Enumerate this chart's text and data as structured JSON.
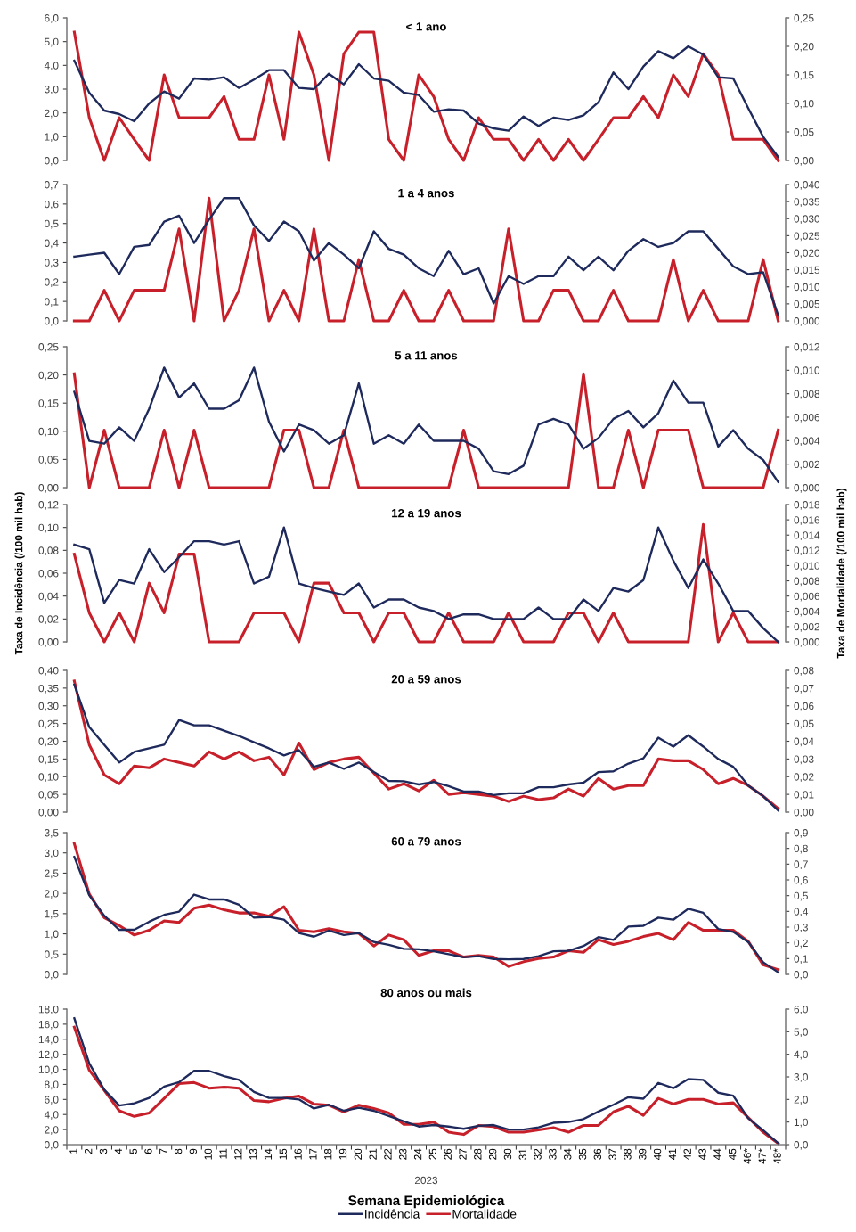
{
  "chart_data": [
    {
      "type": "line",
      "title": "< 1 ano",
      "categories": [
        null,
        null,
        null,
        null,
        null,
        null,
        null,
        null,
        null,
        null,
        null,
        null,
        null,
        null,
        null,
        null,
        null,
        null,
        null,
        null,
        null,
        null,
        null,
        null,
        null,
        null,
        null,
        null,
        null,
        null,
        null,
        null,
        null,
        null,
        null,
        null,
        null,
        null,
        null,
        null,
        null,
        null,
        null,
        null,
        null,
        null,
        null,
        null
      ],
      "ylim": [
        0,
        6
      ],
      "yticks": [
        {
          "value": 0,
          "label": "0,0"
        },
        {
          "value": 1,
          "label": "1,0"
        },
        {
          "value": 2,
          "label": "2,0"
        },
        {
          "value": 3,
          "label": "3,0"
        },
        {
          "value": 4,
          "label": "4,0"
        },
        {
          "value": 5,
          "label": "5,0"
        },
        {
          "value": 6,
          "label": "6,0"
        }
      ],
      "y2lim": [
        0,
        0.25
      ],
      "y2ticks": [
        {
          "value": 0,
          "label": "0,00"
        },
        {
          "value": 0.05,
          "label": "0,05"
        },
        {
          "value": 0.1,
          "label": "0,10"
        },
        {
          "value": 0.15,
          "label": "0,15"
        },
        {
          "value": 0.2,
          "label": "0,20"
        },
        {
          "value": 0.25,
          "label": "0,25"
        }
      ],
      "series": [
        {
          "color": "#1f2a5c",
          "values": [
            4.2,
            2.85,
            2.1,
            1.95,
            1.65,
            2.4,
            2.9,
            2.6,
            3.45,
            3.4,
            3.5,
            3.05,
            3.4,
            3.8,
            3.8,
            3.05,
            3.0,
            3.65,
            3.2,
            4.05,
            3.45,
            3.35,
            2.85,
            2.75,
            2.05,
            2.15,
            2.1,
            1.55,
            1.35,
            1.25,
            1.85,
            1.45,
            1.8,
            1.7,
            1.9,
            2.45,
            3.7,
            3.0,
            3.95,
            4.6,
            4.3,
            4.8,
            4.45,
            3.5,
            3.45,
            2.2,
            1.0,
            0.15
          ]
        },
        {
          "color": "#c8202a",
          "axis": "y2",
          "values": [
            0.225,
            0.075,
            0,
            0.075,
            0.037,
            0,
            0.15,
            0.075,
            0.075,
            0.075,
            0.112,
            0.037,
            0.037,
            0.15,
            0.037,
            0.225,
            0.15,
            0,
            0.187,
            0.225,
            0.225,
            0.037,
            0,
            0.15,
            0.112,
            0.037,
            0,
            0.075,
            0.037,
            0.037,
            0,
            0.037,
            0,
            0.037,
            0,
            0.037,
            0.075,
            0.075,
            0.112,
            0.075,
            0.15,
            0.112,
            0.187,
            0.15,
            0.037,
            0.037,
            0.037,
            0
          ]
        }
      ]
    },
    {
      "type": "line",
      "title": "1 a 4 anos",
      "categories": [
        null,
        null,
        null,
        null,
        null,
        null,
        null,
        null,
        null,
        null,
        null,
        null,
        null,
        null,
        null,
        null,
        null,
        null,
        null,
        null,
        null,
        null,
        null,
        null,
        null,
        null,
        null,
        null,
        null,
        null,
        null,
        null,
        null,
        null,
        null,
        null,
        null,
        null,
        null,
        null,
        null,
        null,
        null,
        null,
        null,
        null,
        null,
        null
      ],
      "ylim": [
        0,
        0.7
      ],
      "yticks": [
        {
          "value": 0,
          "label": "0,0"
        },
        {
          "value": 0.1,
          "label": "0,1"
        },
        {
          "value": 0.2,
          "label": "0,2"
        },
        {
          "value": 0.3,
          "label": "0,3"
        },
        {
          "value": 0.4,
          "label": "0,4"
        },
        {
          "value": 0.5,
          "label": "0,5"
        },
        {
          "value": 0.6,
          "label": "0,6"
        },
        {
          "value": 0.7,
          "label": "0,7"
        }
      ],
      "y2lim": [
        0,
        0.04
      ],
      "y2ticks": [
        {
          "value": 0,
          "label": "0,000"
        },
        {
          "value": 0.005,
          "label": "0,005"
        },
        {
          "value": 0.01,
          "label": "0,010"
        },
        {
          "value": 0.015,
          "label": "0,015"
        },
        {
          "value": 0.02,
          "label": "0,020"
        },
        {
          "value": 0.025,
          "label": "0,025"
        },
        {
          "value": 0.03,
          "label": "0,030"
        },
        {
          "value": 0.035,
          "label": "0,035"
        },
        {
          "value": 0.04,
          "label": "0,040"
        }
      ],
      "series": [
        {
          "color": "#1f2a5c",
          "values": [
            0.33,
            0.34,
            0.35,
            0.24,
            0.38,
            0.39,
            0.51,
            0.54,
            0.4,
            0.52,
            0.63,
            0.63,
            0.49,
            0.41,
            0.51,
            0.46,
            0.31,
            0.4,
            0.34,
            0.27,
            0.46,
            0.37,
            0.34,
            0.27,
            0.23,
            0.36,
            0.24,
            0.27,
            0.09,
            0.23,
            0.19,
            0.23,
            0.23,
            0.33,
            0.26,
            0.33,
            0.26,
            0.36,
            0.42,
            0.38,
            0.4,
            0.46,
            0.46,
            0.37,
            0.28,
            0.24,
            0.25,
            0.03
          ]
        },
        {
          "color": "#c8202a",
          "axis": "y2",
          "values": [
            0,
            0,
            0.009,
            0,
            0.009,
            0.009,
            0.009,
            0.027,
            0,
            0.036,
            0,
            0.009,
            0.027,
            0,
            0.009,
            0,
            0.027,
            0,
            0,
            0.018,
            0,
            0,
            0.009,
            0,
            0,
            0.009,
            0,
            0,
            0,
            0.027,
            0,
            0,
            0.009,
            0.009,
            0,
            0,
            0.009,
            0,
            0,
            0,
            0.018,
            0,
            0.009,
            0,
            0,
            0,
            0.018,
            0
          ]
        }
      ]
    },
    {
      "type": "line",
      "title": "5 a 11 anos",
      "categories": [
        null,
        null,
        null,
        null,
        null,
        null,
        null,
        null,
        null,
        null,
        null,
        null,
        null,
        null,
        null,
        null,
        null,
        null,
        null,
        null,
        null,
        null,
        null,
        null,
        null,
        null,
        null,
        null,
        null,
        null,
        null,
        null,
        null,
        null,
        null,
        null,
        null,
        null,
        null,
        null,
        null,
        null,
        null,
        null,
        null,
        null,
        null,
        null
      ],
      "ylim": [
        0,
        0.25
      ],
      "yticks": [
        {
          "value": 0,
          "label": "0,00"
        },
        {
          "value": 0.05,
          "label": "0,05"
        },
        {
          "value": 0.1,
          "label": "0,10"
        },
        {
          "value": 0.15,
          "label": "0,15"
        },
        {
          "value": 0.2,
          "label": "0,20"
        },
        {
          "value": 0.25,
          "label": "0,25"
        }
      ],
      "y2lim": [
        0,
        0.012
      ],
      "y2ticks": [
        {
          "value": 0,
          "label": "0,000"
        },
        {
          "value": 0.002,
          "label": "0,002"
        },
        {
          "value": 0.004,
          "label": "0,004"
        },
        {
          "value": 0.006,
          "label": "0,006"
        },
        {
          "value": 0.008,
          "label": "0,008"
        },
        {
          "value": 0.01,
          "label": "0,010"
        },
        {
          "value": 0.012,
          "label": "0,012"
        }
      ],
      "series": [
        {
          "color": "#1f2a5c",
          "values": [
            0.17,
            0.083,
            0.078,
            0.107,
            0.083,
            0.14,
            0.213,
            0.16,
            0.185,
            0.14,
            0.14,
            0.155,
            0.213,
            0.117,
            0.064,
            0.112,
            0.102,
            0.078,
            0.093,
            0.185,
            0.078,
            0.093,
            0.078,
            0.112,
            0.083,
            0.083,
            0.083,
            0.069,
            0.029,
            0.024,
            0.039,
            0.112,
            0.122,
            0.112,
            0.069,
            0.088,
            0.122,
            0.136,
            0.107,
            0.132,
            0.19,
            0.151,
            0.151,
            0.073,
            0.102,
            0.069,
            0.049,
            0.01
          ]
        },
        {
          "color": "#c8202a",
          "axis": "y2",
          "values": [
            0.0097,
            0,
            0.0049,
            0,
            0,
            0,
            0.0049,
            0,
            0.0049,
            0,
            0,
            0,
            0,
            0,
            0.0049,
            0.0049,
            0,
            0,
            0.0049,
            0,
            0,
            0,
            0,
            0,
            0,
            0,
            0.0049,
            0,
            0,
            0,
            0,
            0,
            0,
            0,
            0.0097,
            0,
            0,
            0.0049,
            0,
            0.0049,
            0.0049,
            0.0049,
            0,
            0,
            0,
            0,
            0,
            0.0049
          ]
        }
      ]
    },
    {
      "type": "line",
      "title": "12 a 19 anos",
      "ylabel": "Taxa de Incidência (/100 mil hab)",
      "y2label": "Taxa de Mortalidade (/100 mil hab)",
      "categories": [
        null,
        null,
        null,
        null,
        null,
        null,
        null,
        null,
        null,
        null,
        null,
        null,
        null,
        null,
        null,
        null,
        null,
        null,
        null,
        null,
        null,
        null,
        null,
        null,
        null,
        null,
        null,
        null,
        null,
        null,
        null,
        null,
        null,
        null,
        null,
        null,
        null,
        null,
        null,
        null,
        null,
        null,
        null,
        null,
        null,
        null,
        null,
        null
      ],
      "ylim": [
        0,
        0.12
      ],
      "yticks": [
        {
          "value": 0,
          "label": "0,00"
        },
        {
          "value": 0.02,
          "label": "0,02"
        },
        {
          "value": 0.04,
          "label": "0,04"
        },
        {
          "value": 0.06,
          "label": "0,06"
        },
        {
          "value": 0.08,
          "label": "0,08"
        },
        {
          "value": 0.1,
          "label": "0,10"
        },
        {
          "value": 0.12,
          "label": "0,12"
        }
      ],
      "y2lim": [
        0,
        0.018
      ],
      "y2ticks": [
        {
          "value": 0,
          "label": "0,000"
        },
        {
          "value": 0.002,
          "label": "0,002"
        },
        {
          "value": 0.004,
          "label": "0,004"
        },
        {
          "value": 0.006,
          "label": "0,006"
        },
        {
          "value": 0.008,
          "label": "0,008"
        },
        {
          "value": 0.01,
          "label": "0,010"
        },
        {
          "value": 0.012,
          "label": "0,012"
        },
        {
          "value": 0.014,
          "label": "0,014"
        },
        {
          "value": 0.016,
          "label": "0,016"
        },
        {
          "value": 0.018,
          "label": "0,018"
        }
      ],
      "series": [
        {
          "color": "#1f2a5c",
          "values": [
            0.085,
            0.081,
            0.034,
            0.054,
            0.051,
            0.081,
            0.061,
            0.074,
            0.088,
            0.088,
            0.085,
            0.088,
            0.051,
            0.057,
            0.1,
            0.051,
            0.047,
            0.044,
            0.041,
            0.051,
            0.03,
            0.037,
            0.037,
            0.03,
            0.027,
            0.02,
            0.024,
            0.024,
            0.02,
            0.02,
            0.02,
            0.03,
            0.02,
            0.02,
            0.037,
            0.027,
            0.047,
            0.044,
            0.054,
            0.1,
            0.071,
            0.047,
            0.072,
            0.051,
            0.027,
            0.027,
            0.012,
            0
          ]
        },
        {
          "color": "#c8202a",
          "axis": "y2",
          "values": [
            0.0115,
            0.0038,
            0,
            0.0038,
            0,
            0.0077,
            0.0038,
            0.0115,
            0.0115,
            0,
            0,
            0,
            0.0038,
            0.0038,
            0.0038,
            0,
            0.0077,
            0.0077,
            0.0038,
            0.0038,
            0,
            0.0038,
            0.0038,
            0,
            0,
            0.0038,
            0,
            0,
            0,
            0.0038,
            0,
            0,
            0,
            0.0038,
            0.0038,
            0,
            0.0038,
            0,
            0,
            0,
            0,
            0,
            0.0154,
            0,
            0.0038,
            0,
            0,
            0
          ]
        }
      ]
    },
    {
      "type": "line",
      "title": "20 a 59 anos",
      "categories": [
        null,
        null,
        null,
        null,
        null,
        null,
        null,
        null,
        null,
        null,
        null,
        null,
        null,
        null,
        null,
        null,
        null,
        null,
        null,
        null,
        null,
        null,
        null,
        null,
        null,
        null,
        null,
        null,
        null,
        null,
        null,
        null,
        null,
        null,
        null,
        null,
        null,
        null,
        null,
        null,
        null,
        null,
        null,
        null,
        null,
        null,
        null,
        null
      ],
      "ylim": [
        0,
        0.4
      ],
      "yticks": [
        {
          "value": 0,
          "label": "0,00"
        },
        {
          "value": 0.05,
          "label": "0,05"
        },
        {
          "value": 0.1,
          "label": "0,10"
        },
        {
          "value": 0.15,
          "label": "0,15"
        },
        {
          "value": 0.2,
          "label": "0,20"
        },
        {
          "value": 0.25,
          "label": "0,25"
        },
        {
          "value": 0.3,
          "label": "0,30"
        },
        {
          "value": 0.35,
          "label": "0,35"
        },
        {
          "value": 0.4,
          "label": "0,40"
        }
      ],
      "y2lim": [
        0,
        0.08
      ],
      "y2ticks": [
        {
          "value": 0,
          "label": "0,00"
        },
        {
          "value": 0.01,
          "label": "0,01"
        },
        {
          "value": 0.02,
          "label": "0,02"
        },
        {
          "value": 0.03,
          "label": "0,03"
        },
        {
          "value": 0.04,
          "label": "0,04"
        },
        {
          "value": 0.05,
          "label": "0,05"
        },
        {
          "value": 0.06,
          "label": "0,06"
        },
        {
          "value": 0.07,
          "label": "0,07"
        },
        {
          "value": 0.08,
          "label": "0,08"
        }
      ],
      "series": [
        {
          "color": "#1f2a5c",
          "values": [
            0.36,
            0.24,
            0.19,
            0.14,
            0.17,
            0.18,
            0.19,
            0.26,
            0.245,
            0.245,
            0.23,
            0.215,
            0.197,
            0.18,
            0.16,
            0.175,
            0.128,
            0.14,
            0.122,
            0.14,
            0.113,
            0.088,
            0.087,
            0.078,
            0.085,
            0.073,
            0.058,
            0.058,
            0.048,
            0.053,
            0.053,
            0.07,
            0.07,
            0.078,
            0.083,
            0.113,
            0.115,
            0.137,
            0.152,
            0.21,
            0.185,
            0.217,
            0.185,
            0.15,
            0.128,
            0.075,
            0.045,
            0.005
          ]
        },
        {
          "color": "#c8202a",
          "axis": "y2",
          "values": [
            0.074,
            0.038,
            0.021,
            0.016,
            0.026,
            0.025,
            0.03,
            0.028,
            0.026,
            0.034,
            0.03,
            0.034,
            0.029,
            0.031,
            0.021,
            0.039,
            0.024,
            0.028,
            0.03,
            0.031,
            0.022,
            0.013,
            0.016,
            0.012,
            0.018,
            0.01,
            0.011,
            0.01,
            0.009,
            0.006,
            0.009,
            0.007,
            0.008,
            0.013,
            0.009,
            0.019,
            0.013,
            0.015,
            0.015,
            0.03,
            0.029,
            0.029,
            0.024,
            0.016,
            0.019,
            0.015,
            0.009,
            0.002
          ]
        }
      ]
    },
    {
      "type": "line",
      "title": "60 a 79 anos",
      "categories": [
        null,
        null,
        null,
        null,
        null,
        null,
        null,
        null,
        null,
        null,
        null,
        null,
        null,
        null,
        null,
        null,
        null,
        null,
        null,
        null,
        null,
        null,
        null,
        null,
        null,
        null,
        null,
        null,
        null,
        null,
        null,
        null,
        null,
        null,
        null,
        null,
        null,
        null,
        null,
        null,
        null,
        null,
        null,
        null,
        null,
        null,
        null,
        null
      ],
      "ylim": [
        0,
        3.5
      ],
      "yticks": [
        {
          "value": 0,
          "label": "0,0"
        },
        {
          "value": 0.5,
          "label": "0,5"
        },
        {
          "value": 1,
          "label": "1,0"
        },
        {
          "value": 1.5,
          "label": "1,5"
        },
        {
          "value": 2,
          "label": "2,0"
        },
        {
          "value": 2.5,
          "label": "2,5"
        },
        {
          "value": 3,
          "label": "3,0"
        },
        {
          "value": 3.5,
          "label": "3,5"
        }
      ],
      "y2lim": [
        0,
        0.9
      ],
      "y2ticks": [
        {
          "value": 0,
          "label": "0,0"
        },
        {
          "value": 0.1,
          "label": "0,1"
        },
        {
          "value": 0.2,
          "label": "0,2"
        },
        {
          "value": 0.3,
          "label": "0,3"
        },
        {
          "value": 0.4,
          "label": "0,4"
        },
        {
          "value": 0.5,
          "label": "0,5"
        },
        {
          "value": 0.6,
          "label": "0,6"
        },
        {
          "value": 0.7,
          "label": "0,7"
        },
        {
          "value": 0.8,
          "label": "0,8"
        },
        {
          "value": 0.9,
          "label": "0,9"
        }
      ],
      "series": [
        {
          "color": "#1f2a5c",
          "values": [
            2.9,
            1.95,
            1.45,
            1.1,
            1.1,
            1.3,
            1.47,
            1.55,
            1.97,
            1.85,
            1.85,
            1.72,
            1.4,
            1.42,
            1.35,
            1.02,
            0.93,
            1.08,
            0.97,
            1.02,
            0.8,
            0.73,
            0.63,
            0.62,
            0.57,
            0.5,
            0.42,
            0.45,
            0.38,
            0.37,
            0.38,
            0.45,
            0.57,
            0.58,
            0.7,
            0.92,
            0.85,
            1.18,
            1.2,
            1.4,
            1.35,
            1.62,
            1.52,
            1.12,
            1.05,
            0.8,
            0.3,
            0.05
          ]
        },
        {
          "color": "#c8202a",
          "axis": "y2",
          "values": [
            0.83,
            0.51,
            0.36,
            0.31,
            0.25,
            0.28,
            0.34,
            0.33,
            0.42,
            0.44,
            0.41,
            0.39,
            0.39,
            0.37,
            0.43,
            0.28,
            0.27,
            0.29,
            0.27,
            0.26,
            0.18,
            0.25,
            0.22,
            0.12,
            0.15,
            0.15,
            0.11,
            0.12,
            0.11,
            0.05,
            0.08,
            0.1,
            0.11,
            0.15,
            0.14,
            0.22,
            0.19,
            0.21,
            0.24,
            0.26,
            0.22,
            0.33,
            0.28,
            0.28,
            0.28,
            0.21,
            0.06,
            0.03
          ]
        }
      ]
    },
    {
      "type": "line",
      "title": "80 anos ou mais",
      "xlabel": "Semana Epidemiológica",
      "annotations": [
        "2023"
      ],
      "legend": "bottom",
      "categories": [
        "1",
        "2",
        "3",
        "4",
        "5",
        "6",
        "7",
        "8",
        "9",
        "10",
        "11",
        "12",
        "13",
        "14",
        "15",
        "16",
        "17",
        "18",
        "19",
        "20",
        "21",
        "22",
        "23",
        "24",
        "25",
        "26",
        "27",
        "28",
        "29",
        "30",
        "31",
        "32",
        "33",
        "34",
        "35",
        "36",
        "37",
        "38",
        "39",
        "40",
        "41",
        "42",
        "43",
        "44",
        "45",
        "46*",
        "47*",
        "48*"
      ],
      "ylim": [
        0,
        18
      ],
      "yticks": [
        {
          "value": 0,
          "label": "0,0"
        },
        {
          "value": 2,
          "label": "2,0"
        },
        {
          "value": 4,
          "label": "4,0"
        },
        {
          "value": 6,
          "label": "6,0"
        },
        {
          "value": 8,
          "label": "8,0"
        },
        {
          "value": 10,
          "label": "10,0"
        },
        {
          "value": 12,
          "label": "12,0"
        },
        {
          "value": 14,
          "label": "14,0"
        },
        {
          "value": 16,
          "label": "16,0"
        },
        {
          "value": 18,
          "label": "18,0"
        }
      ],
      "y2lim": [
        0,
        6
      ],
      "y2ticks": [
        {
          "value": 0,
          "label": "0,0"
        },
        {
          "value": 1,
          "label": "1,0"
        },
        {
          "value": 2,
          "label": "2,0"
        },
        {
          "value": 3,
          "label": "3,0"
        },
        {
          "value": 4,
          "label": "4,0"
        },
        {
          "value": 5,
          "label": "5,0"
        },
        {
          "value": 6,
          "label": "6,0"
        }
      ],
      "series": [
        {
          "name": "Incidência",
          "color": "#1f2a5c",
          "values": [
            16.8,
            10.8,
            7.3,
            5.2,
            5.5,
            6.2,
            7.7,
            8.3,
            9.8,
            9.8,
            9.1,
            8.6,
            7.0,
            6.2,
            6.2,
            6.0,
            4.8,
            5.3,
            4.5,
            4.9,
            4.5,
            3.8,
            3.1,
            2.4,
            2.6,
            2.4,
            2.1,
            2.5,
            2.6,
            2.0,
            2.0,
            2.3,
            2.9,
            3.0,
            3.4,
            4.4,
            5.3,
            6.3,
            6.1,
            8.2,
            7.5,
            8.7,
            8.6,
            6.9,
            6.5,
            3.5,
            1.9,
            0.2
          ]
        },
        {
          "name": "Mortalidade",
          "color": "#c8202a",
          "axis": "y2",
          "values": [
            5.2,
            3.3,
            2.4,
            1.5,
            1.25,
            1.4,
            2.05,
            2.7,
            2.75,
            2.5,
            2.55,
            2.5,
            1.95,
            1.9,
            2.05,
            2.15,
            1.8,
            1.75,
            1.45,
            1.75,
            1.6,
            1.4,
            0.9,
            0.9,
            1.0,
            0.55,
            0.45,
            0.85,
            0.8,
            0.55,
            0.55,
            0.65,
            0.75,
            0.55,
            0.85,
            0.85,
            1.45,
            1.7,
            1.3,
            2.05,
            1.8,
            2.0,
            2.0,
            1.8,
            1.85,
            1.2,
            0.55,
            0.05
          ]
        }
      ]
    }
  ]
}
